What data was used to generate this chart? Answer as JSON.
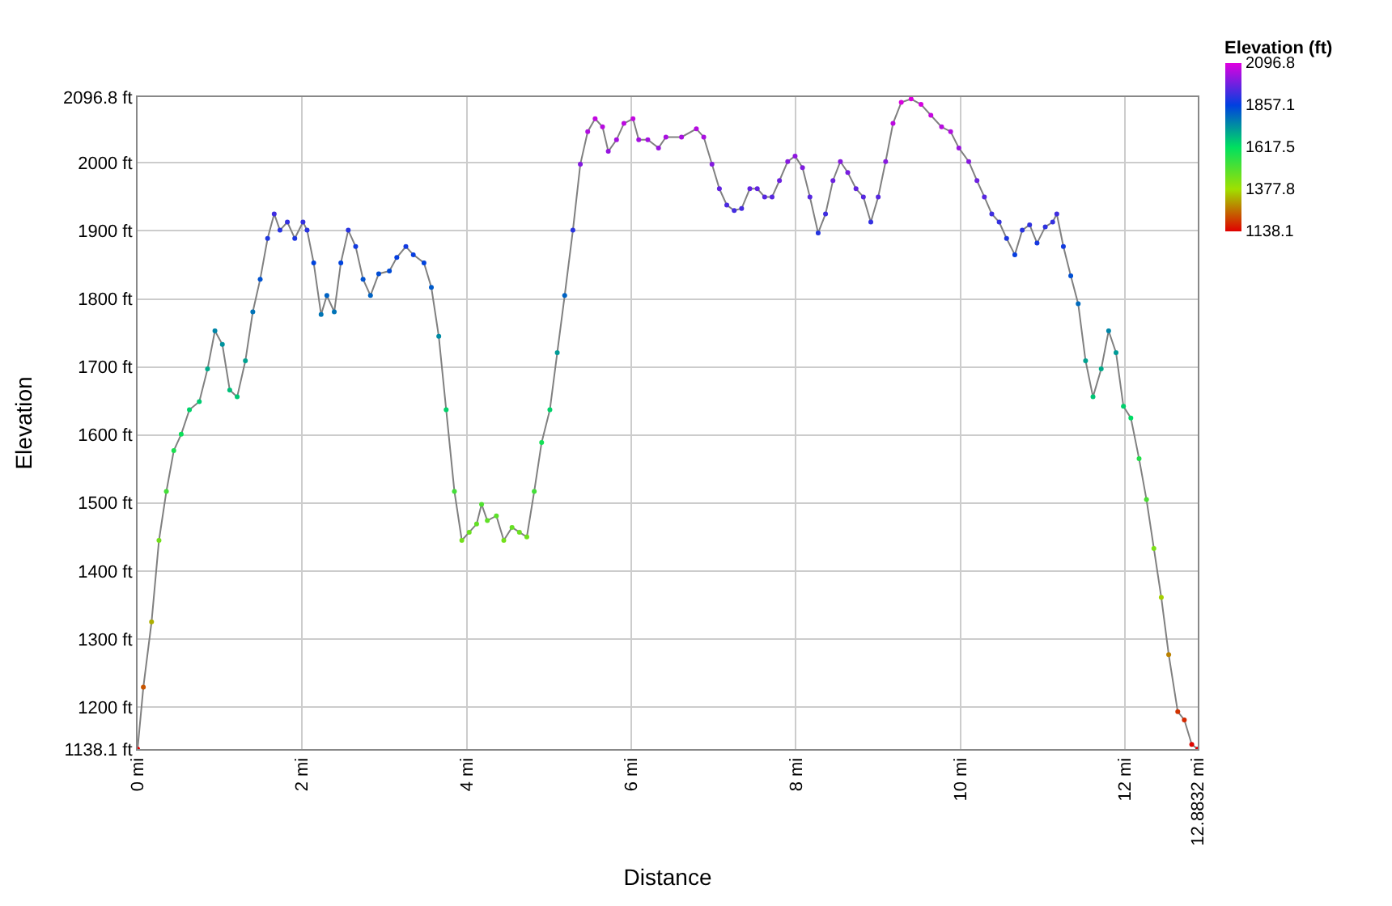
{
  "chart_data": {
    "type": "line",
    "xlabel": "Distance",
    "ylabel": "Elevation",
    "clabel": "Elevation (ft)",
    "clim": [
      1138.1,
      2096.8
    ],
    "cticks": [
      2096.8,
      1857.1,
      1617.5,
      1377.8,
      1138.1
    ],
    "xlim": [
      0,
      12.8832
    ],
    "xticks": [
      {
        "value": 0,
        "label": "0 mi"
      },
      {
        "value": 2,
        "label": "2 mi"
      },
      {
        "value": 4,
        "label": "4 mi"
      },
      {
        "value": 6,
        "label": "6 mi"
      },
      {
        "value": 8,
        "label": "8 mi"
      },
      {
        "value": 10,
        "label": "10 mi"
      },
      {
        "value": 12,
        "label": "12 mi"
      },
      {
        "value": 12.8832,
        "label": "12.8832 mi"
      }
    ],
    "ylim": [
      1138.1,
      2096.8
    ],
    "yticks": [
      {
        "value": 1138.1,
        "label": "1138.1 ft"
      },
      {
        "value": 1200,
        "label": "1200 ft"
      },
      {
        "value": 1300,
        "label": "1300 ft"
      },
      {
        "value": 1400,
        "label": "1400 ft"
      },
      {
        "value": 1500,
        "label": "1500 ft"
      },
      {
        "value": 1600,
        "label": "1600 ft"
      },
      {
        "value": 1700,
        "label": "1700 ft"
      },
      {
        "value": 1800,
        "label": "1800 ft"
      },
      {
        "value": 1900,
        "label": "1900 ft"
      },
      {
        "value": 2000,
        "label": "2000 ft"
      },
      {
        "value": 2096.8,
        "label": "2096.8 ft"
      }
    ],
    "grid": true,
    "marker": "circle",
    "x": [
      0,
      0.07,
      0.17,
      0.26,
      0.35,
      0.44,
      0.53,
      0.63,
      0.75,
      0.85,
      0.94,
      1.03,
      1.12,
      1.21,
      1.31,
      1.4,
      1.49,
      1.58,
      1.66,
      1.73,
      1.82,
      1.91,
      2.01,
      2.06,
      2.14,
      2.23,
      2.3,
      2.39,
      2.47,
      2.56,
      2.65,
      2.74,
      2.83,
      2.93,
      3.06,
      3.15,
      3.26,
      3.35,
      3.48,
      3.57,
      3.66,
      3.75,
      3.85,
      3.94,
      4.03,
      4.12,
      4.18,
      4.25,
      4.36,
      4.45,
      4.55,
      4.64,
      4.73,
      4.82,
      4.91,
      5.01,
      5.1,
      5.19,
      5.29,
      5.38,
      5.47,
      5.56,
      5.65,
      5.72,
      5.82,
      5.91,
      6.02,
      6.09,
      6.2,
      6.33,
      6.42,
      6.61,
      6.79,
      6.88,
      6.98,
      7.07,
      7.16,
      7.25,
      7.34,
      7.44,
      7.53,
      7.62,
      7.71,
      7.8,
      7.9,
      7.99,
      8.08,
      8.17,
      8.27,
      8.36,
      8.45,
      8.54,
      8.63,
      8.73,
      8.82,
      8.91,
      9.0,
      9.09,
      9.18,
      9.28,
      9.4,
      9.52,
      9.64,
      9.77,
      9.88,
      9.98,
      10.1,
      10.2,
      10.29,
      10.38,
      10.47,
      10.56,
      10.66,
      10.75,
      10.84,
      10.93,
      11.03,
      11.12,
      11.17,
      11.25,
      11.34,
      11.43,
      11.52,
      11.61,
      11.71,
      11.8,
      11.89,
      11.98,
      12.07,
      12.17,
      12.26,
      12.35,
      12.44,
      12.53,
      12.64,
      12.72,
      12.81,
      12.8832
    ],
    "series": [
      {
        "color": "#808080",
        "values": [
          1138.1,
          1229,
          1325,
          1445,
          1517,
          1577,
          1601,
          1637,
          1649,
          1697,
          1753,
          1733,
          1666,
          1656,
          1709,
          1781,
          1829,
          1889,
          1925,
          1901,
          1913,
          1889,
          1913,
          1901,
          1853,
          1777,
          1805,
          1781,
          1853,
          1901,
          1877,
          1829,
          1805,
          1837,
          1841,
          1861,
          1877,
          1865,
          1853,
          1817,
          1745,
          1637,
          1517,
          1445,
          1457,
          1469,
          1498,
          1474,
          1481,
          1445,
          1464,
          1457,
          1450,
          1517,
          1589,
          1637,
          1721,
          1805,
          1901,
          1998,
          2046,
          2065,
          2053,
          2017,
          2034,
          2058,
          2065,
          2034,
          2034,
          2022,
          2038,
          2038,
          2050,
          2038,
          1998,
          1962,
          1938,
          1930,
          1933,
          1962,
          1962,
          1950,
          1950,
          1974,
          2002,
          2010,
          1993,
          1950,
          1897,
          1925,
          1974,
          2002,
          1986,
          1962,
          1950,
          1913,
          1950,
          2002,
          2058,
          2089,
          2094,
          2086,
          2070,
          2053,
          2046,
          2022,
          2002,
          1974,
          1950,
          1925,
          1913,
          1889,
          1865,
          1901,
          1909,
          1882,
          1906,
          1913,
          1925,
          1877,
          1834,
          1793,
          1709,
          1656,
          1697,
          1753,
          1721,
          1642,
          1625,
          1565,
          1505,
          1433,
          1361,
          1277,
          1193,
          1181,
          1145,
          1138.1
        ]
      }
    ]
  }
}
